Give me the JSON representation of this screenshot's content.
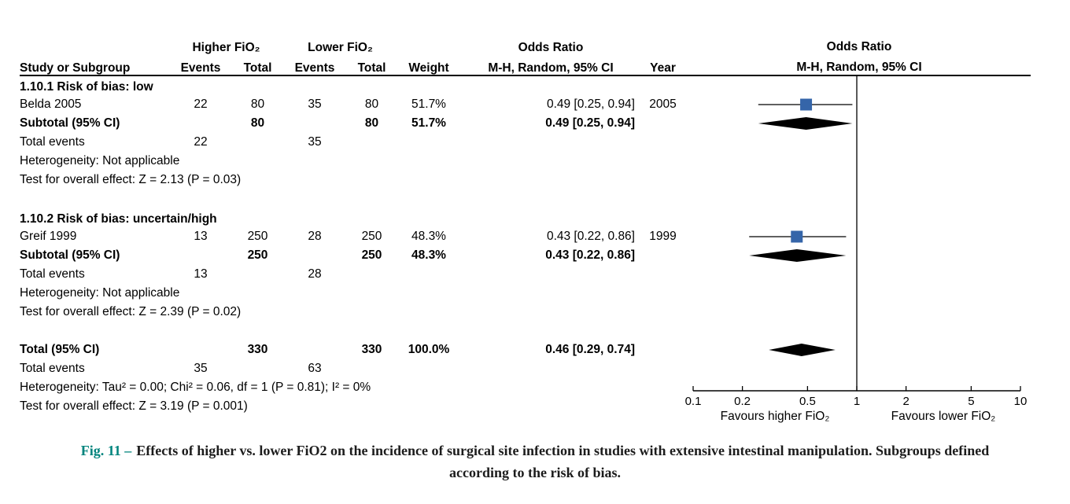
{
  "header": {
    "group1": "Higher FiO₂",
    "group2": "Lower FiO₂",
    "or_left": "Odds Ratio",
    "or_right": "Odds Ratio",
    "col_study": "Study or Subgroup",
    "col_events": "Events",
    "col_total": "Total",
    "col_weight": "Weight",
    "col_method": "M-H, Random, 95% CI",
    "col_year": "Year",
    "plot_method": "M-H, Random, 95% CI"
  },
  "rows": [
    {
      "type": "section",
      "study": "1.10.1 Risk of bias: low"
    },
    {
      "type": "study",
      "study": "Belda 2005",
      "e1": "22",
      "t1": "80",
      "e2": "35",
      "t2": "80",
      "w": "51.7%",
      "or": "0.49 [0.25, 0.94]",
      "year": "2005",
      "marker": {
        "kind": "square",
        "est": 0.49,
        "lo": 0.25,
        "hi": 0.94,
        "weight": 51.7
      }
    },
    {
      "type": "subtotal",
      "study": "Subtotal (95% CI)",
      "t1": "80",
      "t2": "80",
      "w": "51.7%",
      "or": "0.49 [0.25, 0.94]",
      "marker": {
        "kind": "diamond",
        "est": 0.49,
        "lo": 0.25,
        "hi": 0.94
      }
    },
    {
      "type": "events",
      "study": "Total events",
      "e1": "22",
      "e2": "35"
    },
    {
      "type": "note",
      "study": "Heterogeneity: Not applicable"
    },
    {
      "type": "note",
      "study": "Test for overall effect: Z = 2.13 (P = 0.03)"
    },
    {
      "type": "spacer"
    },
    {
      "type": "section",
      "study": "1.10.2 Risk of bias: uncertain/high"
    },
    {
      "type": "study",
      "study": "Greif 1999",
      "e1": "13",
      "t1": "250",
      "e2": "28",
      "t2": "250",
      "w": "48.3%",
      "or": "0.43 [0.22, 0.86]",
      "year": "1999",
      "marker": {
        "kind": "square",
        "est": 0.43,
        "lo": 0.22,
        "hi": 0.86,
        "weight": 48.3
      }
    },
    {
      "type": "subtotal",
      "study": "Subtotal (95% CI)",
      "t1": "250",
      "t2": "250",
      "w": "48.3%",
      "or": "0.43 [0.22, 0.86]",
      "marker": {
        "kind": "diamond",
        "est": 0.43,
        "lo": 0.22,
        "hi": 0.86
      }
    },
    {
      "type": "events",
      "study": "Total events",
      "e1": "13",
      "e2": "28"
    },
    {
      "type": "note",
      "study": "Heterogeneity: Not applicable"
    },
    {
      "type": "note",
      "study": "Test for overall effect: Z = 2.39 (P = 0.02)"
    },
    {
      "type": "spacer"
    },
    {
      "type": "total",
      "study": "Total (95% CI)",
      "t1": "330",
      "t2": "330",
      "w": "100.0%",
      "or": "0.46 [0.29, 0.74]",
      "marker": {
        "kind": "diamond",
        "est": 0.46,
        "lo": 0.29,
        "hi": 0.74
      }
    },
    {
      "type": "events",
      "study": "Total events",
      "e1": "35",
      "e2": "63"
    },
    {
      "type": "note",
      "study": "Heterogeneity: Tau² = 0.00; Chi² = 0.06, df = 1 (P = 0.81); I² = 0%"
    },
    {
      "type": "note",
      "study": "Test for overall effect: Z = 3.19 (P = 0.001)"
    }
  ],
  "axis": {
    "tick_labels": [
      "0.1",
      "0.2",
      "0.5",
      "1",
      "2",
      "5",
      "10"
    ],
    "favours_left": "Favours higher FiO₂",
    "favours_right": "Favours lower FiO₂"
  },
  "caption": {
    "label": "Fig. 11 –",
    "text": "Effects of higher vs. lower FiO2 on the incidence of surgical site infection in studies with extensive intestinal manipulation. Subgroups defined according to the risk of bias."
  },
  "colors": {
    "square": "#3565a9",
    "diamond": "#000000",
    "caption_label": "#00847d"
  },
  "chart_data": {
    "type": "scatter",
    "subtype": "forest_plot",
    "title": "Odds Ratio",
    "method": "M-H, Random, 95% CI",
    "x_scale": "log10",
    "x_range": [
      0.1,
      10
    ],
    "x_ticks": [
      0.1,
      0.2,
      0.5,
      1,
      2,
      5,
      10
    ],
    "null_line": 1,
    "xlabel_left": "Favours higher FiO₂",
    "xlabel_right": "Favours lower FiO₂",
    "groups": [
      {
        "name": "1.10.1 Risk of bias: low",
        "studies": [
          {
            "study": "Belda 2005",
            "year": 2005,
            "events_higher": 22,
            "total_higher": 80,
            "events_lower": 35,
            "total_lower": 80,
            "weight_pct": 51.7,
            "or": 0.49,
            "ci": [
              0.25,
              0.94
            ]
          }
        ],
        "subtotal": {
          "total_higher": 80,
          "total_lower": 80,
          "weight_pct": 51.7,
          "or": 0.49,
          "ci": [
            0.25,
            0.94
          ],
          "total_events_higher": 22,
          "total_events_lower": 35,
          "heterogeneity": "Not applicable",
          "overall_effect": "Z = 2.13 (P = 0.03)"
        }
      },
      {
        "name": "1.10.2 Risk of bias: uncertain/high",
        "studies": [
          {
            "study": "Greif 1999",
            "year": 1999,
            "events_higher": 13,
            "total_higher": 250,
            "events_lower": 28,
            "total_lower": 250,
            "weight_pct": 48.3,
            "or": 0.43,
            "ci": [
              0.22,
              0.86
            ]
          }
        ],
        "subtotal": {
          "total_higher": 250,
          "total_lower": 250,
          "weight_pct": 48.3,
          "or": 0.43,
          "ci": [
            0.22,
            0.86
          ],
          "total_events_higher": 13,
          "total_events_lower": 28,
          "heterogeneity": "Not applicable",
          "overall_effect": "Z = 2.39 (P = 0.02)"
        }
      }
    ],
    "total": {
      "total_higher": 330,
      "total_lower": 330,
      "weight_pct": 100.0,
      "or": 0.46,
      "ci": [
        0.29,
        0.74
      ],
      "total_events_higher": 35,
      "total_events_lower": 63,
      "heterogeneity": "Tau² = 0.00; Chi² = 0.06, df = 1 (P = 0.81); I² = 0%",
      "overall_effect": "Z = 3.19 (P = 0.001)"
    }
  }
}
